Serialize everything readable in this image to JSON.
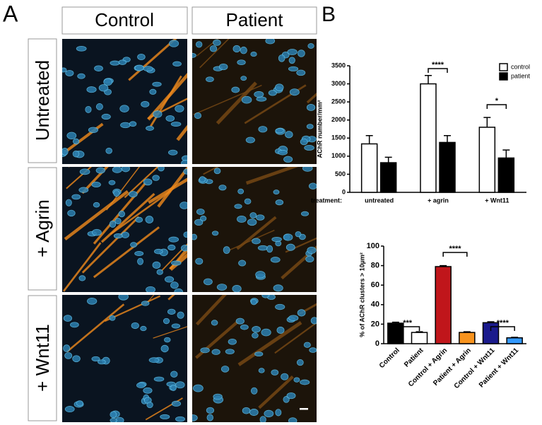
{
  "panel_a": {
    "label": "A",
    "columns": [
      "Control",
      "Patient"
    ],
    "rows": [
      "Untreated",
      "+ Agrin",
      "+ Wnt11"
    ]
  },
  "panel_b": {
    "label": "B"
  },
  "chart_data": [
    {
      "type": "bar",
      "y_label": "AChR number/mm²",
      "x_label": "treatment:",
      "categories": [
        "untreated",
        "+ agrin",
        "+ Wnt11"
      ],
      "series": [
        {
          "name": "control",
          "color": "#ffffff",
          "values": [
            1340,
            3000,
            1800
          ],
          "errors": [
            230,
            230,
            270
          ]
        },
        {
          "name": "patient",
          "color": "#000000",
          "values": [
            820,
            1380,
            950
          ],
          "errors": [
            150,
            190,
            220
          ]
        }
      ],
      "ylim": [
        0,
        3500
      ],
      "yticks": [
        0,
        500,
        1000,
        1500,
        2000,
        2500,
        3000,
        3500
      ],
      "annotations": [
        "****",
        "*"
      ],
      "legend": "top-right",
      "grid": false
    },
    {
      "type": "bar",
      "y_label": "% of AChR clusters > 10µm²",
      "categories": [
        "Control",
        "Patient",
        "Control + Agrin",
        "Patient + Agrin",
        "Control + Wnt11",
        "Patient + Wnt11"
      ],
      "values": [
        21,
        11.5,
        79,
        11.5,
        21.5,
        6
      ],
      "errors": [
        1,
        0.7,
        1,
        0.7,
        1,
        0.5
      ],
      "colors": [
        "#000000",
        "#ffffff",
        "#c0161b",
        "#f7931e",
        "#1a1a8c",
        "#3399ff"
      ],
      "ylim": [
        0,
        100
      ],
      "yticks": [
        0,
        20,
        40,
        60,
        80,
        100
      ],
      "annotations": [
        "***",
        "****",
        "****"
      ],
      "grid": false
    }
  ]
}
